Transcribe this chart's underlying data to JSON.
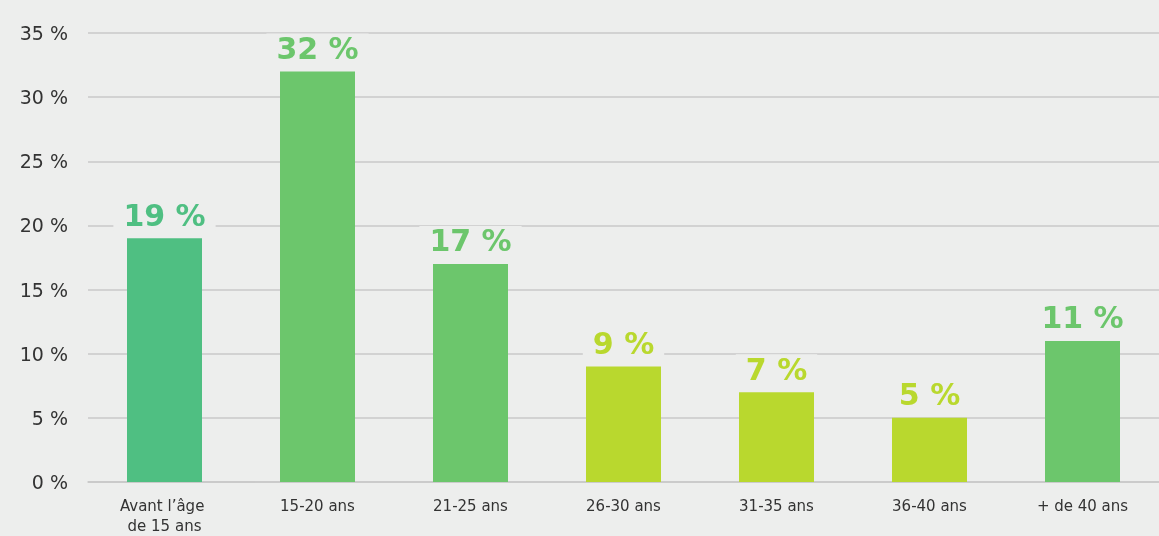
{
  "chart_data": {
    "type": "bar",
    "categories": [
      "Avant l’âge de 15 ans",
      "15-20 ans",
      "21-25 ans",
      "26-30 ans",
      "31-35 ans",
      "36-40 ans",
      "+ de 40 ans"
    ],
    "values": [
      19,
      32,
      17,
      9,
      7,
      5,
      11
    ],
    "colors": [
      "#4fbf82",
      "#6cc66c",
      "#6cc66c",
      "#b9d82e",
      "#b9d82e",
      "#b9d82e",
      "#6cc66c"
    ],
    "value_labels": [
      "19 %",
      "32 %",
      "17 %",
      "9 %",
      "7 %",
      "5 %",
      "11 %"
    ],
    "ylim": [
      0,
      35
    ],
    "yticks": [
      {
        "value": 0,
        "label": "0 %"
      },
      {
        "value": 5,
        "label": "5 %"
      },
      {
        "value": 10,
        "label": "10 %"
      },
      {
        "value": 15,
        "label": "15 %"
      },
      {
        "value": 20,
        "label": "20 %"
      },
      {
        "value": 25,
        "label": "25 %"
      },
      {
        "value": 30,
        "label": "30 %"
      },
      {
        "value": 35,
        "label": "35 %"
      }
    ],
    "grid": "y"
  }
}
